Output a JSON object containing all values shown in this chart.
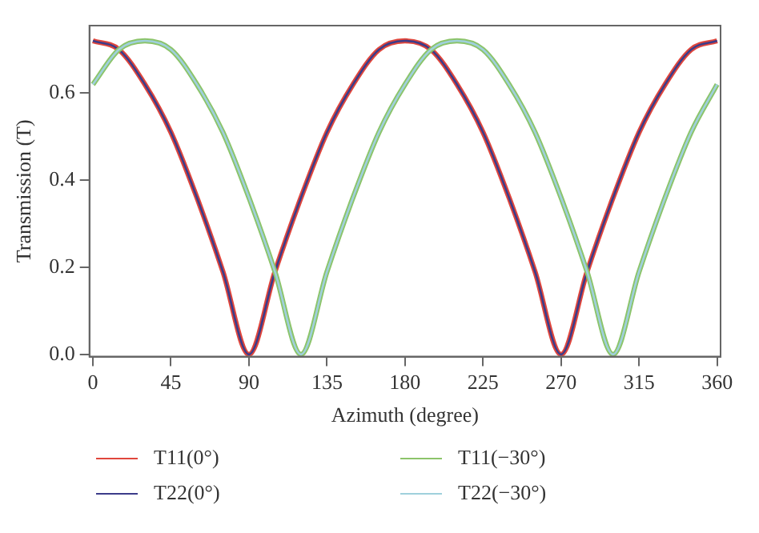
{
  "chart_data": {
    "type": "line",
    "xlabel": "Azimuth (degree)",
    "ylabel": "Transmission (T)",
    "x": [
      0,
      15,
      30,
      45,
      60,
      75,
      90,
      105,
      120,
      135,
      150,
      165,
      180,
      195,
      210,
      225,
      240,
      255,
      270,
      285,
      300,
      315,
      330,
      345,
      360
    ],
    "series": [
      {
        "name": "T11(0°)",
        "color": "#e0463c",
        "values": [
          0.72,
          0.7,
          0.62,
          0.51,
          0.36,
          0.19,
          0,
          0.19,
          0.36,
          0.51,
          0.62,
          0.7,
          0.72,
          0.7,
          0.62,
          0.51,
          0.36,
          0.19,
          0,
          0.19,
          0.36,
          0.51,
          0.62,
          0.7,
          0.72
        ]
      },
      {
        "name": "T22(0°)",
        "color": "#3c3c8a",
        "values": [
          0.72,
          0.7,
          0.62,
          0.51,
          0.36,
          0.19,
          0,
          0.19,
          0.36,
          0.51,
          0.62,
          0.7,
          0.72,
          0.7,
          0.62,
          0.51,
          0.36,
          0.19,
          0,
          0.19,
          0.36,
          0.51,
          0.62,
          0.7,
          0.72
        ]
      },
      {
        "name": "T11(−30°)",
        "color": "#8cc46a",
        "values": [
          0.62,
          0.7,
          0.72,
          0.7,
          0.62,
          0.51,
          0.36,
          0.19,
          0,
          0.19,
          0.36,
          0.51,
          0.62,
          0.7,
          0.72,
          0.7,
          0.62,
          0.51,
          0.36,
          0.19,
          0,
          0.19,
          0.36,
          0.51,
          0.62
        ]
      },
      {
        "name": "T22(−30°)",
        "color": "#9fd0dc",
        "values": [
          0.62,
          0.7,
          0.72,
          0.7,
          0.62,
          0.51,
          0.36,
          0.19,
          0,
          0.19,
          0.36,
          0.51,
          0.62,
          0.7,
          0.72,
          0.7,
          0.62,
          0.51,
          0.36,
          0.19,
          0,
          0.19,
          0.36,
          0.51,
          0.62
        ]
      }
    ],
    "xlim": [
      -2,
      362
    ],
    "xticks": [
      0,
      45,
      90,
      135,
      180,
      225,
      270,
      315,
      360
    ],
    "ylim": [
      -0.005,
      0.755
    ],
    "yticks": [
      {
        "value": 0,
        "label": "0.0"
      },
      0.2,
      0.4,
      0.6
    ],
    "grid": false,
    "legend": "bottom",
    "marker": "none",
    "line_style": "solid"
  }
}
